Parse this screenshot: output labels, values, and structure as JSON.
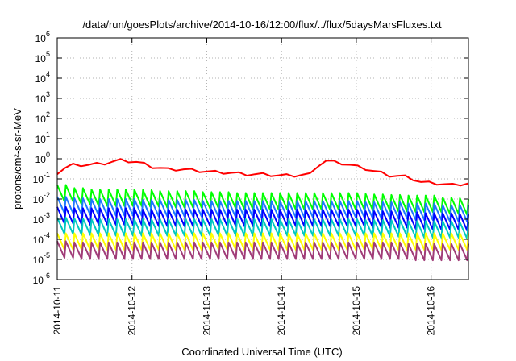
{
  "chart_data": {
    "type": "line",
    "title": "/data/run/goesPlots/archive/2014-10-16/12:00/flux/../flux/5daysMarsFluxes.txt",
    "xlabel": "Coordinated Universal Time (UTC)",
    "ylabel": "protons/cm²-s-sr-MeV",
    "y_scale": "log",
    "ylim": [
      1e-06,
      1000000.0
    ],
    "y_ticks": [
      {
        "value": 1e-06,
        "base": "10",
        "exp": "-6"
      },
      {
        "value": 1e-05,
        "base": "10",
        "exp": "-5"
      },
      {
        "value": 0.0001,
        "base": "10",
        "exp": "-4"
      },
      {
        "value": 0.001,
        "base": "10",
        "exp": "-3"
      },
      {
        "value": 0.01,
        "base": "10",
        "exp": "-2"
      },
      {
        "value": 0.1,
        "base": "10",
        "exp": "-1"
      },
      {
        "value": 1.0,
        "base": "10",
        "exp": "0"
      },
      {
        "value": 10.0,
        "base": "10",
        "exp": "1"
      },
      {
        "value": 100.0,
        "base": "10",
        "exp": "2"
      },
      {
        "value": 1000.0,
        "base": "10",
        "exp": "3"
      },
      {
        "value": 10000.0,
        "base": "10",
        "exp": "4"
      },
      {
        "value": 100000.0,
        "base": "10",
        "exp": "5"
      },
      {
        "value": 1000000.0,
        "base": "10",
        "exp": "6"
      }
    ],
    "xlim": [
      "2014-10-11",
      "2014-10-16 12:00"
    ],
    "x_ticks": [
      "2014-10-11",
      "2014-10-12",
      "2014-10-13",
      "2014-10-14",
      "2014-10-15",
      "2014-10-16"
    ],
    "grid": true,
    "series": [
      {
        "color": "#ff0000",
        "sawtooth": false,
        "values": [
          0.2,
          0.5,
          0.5,
          0.6,
          0.85,
          0.7,
          0.4,
          0.3,
          0.3,
          0.25,
          0.22,
          0.2,
          0.17,
          0.17,
          0.15,
          0.15,
          0.17,
          0.8,
          0.6,
          0.4,
          0.25,
          0.15,
          0.13,
          0.07,
          0.06,
          0.05,
          0.06
        ]
      },
      {
        "color": "#00ff00",
        "sawtooth": true,
        "values": [
          0.05,
          0.035,
          0.03,
          0.03,
          0.03,
          0.028,
          0.025,
          0.025,
          0.025,
          0.022,
          0.022,
          0.02,
          0.02,
          0.02,
          0.02,
          0.02,
          0.02,
          0.02,
          0.02,
          0.018,
          0.017,
          0.016,
          0.015,
          0.015,
          0.012,
          0.011,
          0.01
        ]
      },
      {
        "color": "#1e78ff",
        "sawtooth": true,
        "values": [
          0.013,
          0.011,
          0.01,
          0.01,
          0.01,
          0.009,
          0.009,
          0.009,
          0.009,
          0.008,
          0.008,
          0.008,
          0.008,
          0.008,
          0.008,
          0.008,
          0.008,
          0.008,
          0.008,
          0.007,
          0.007,
          0.007,
          0.006,
          0.006,
          0.005,
          0.005,
          0.005
        ]
      },
      {
        "color": "#0000ff",
        "sawtooth": true,
        "values": [
          0.004,
          0.0035,
          0.0035,
          0.0035,
          0.0035,
          0.003,
          0.003,
          0.003,
          0.003,
          0.003,
          0.003,
          0.003,
          0.003,
          0.003,
          0.003,
          0.003,
          0.003,
          0.003,
          0.003,
          0.0025,
          0.0025,
          0.0025,
          0.0022,
          0.002,
          0.002,
          0.0018,
          0.0017
        ]
      },
      {
        "color": "#00c8c0",
        "sawtooth": true,
        "values": [
          0.0012,
          0.0011,
          0.001,
          0.001,
          0.001,
          0.001,
          0.001,
          0.001,
          0.001,
          0.001,
          0.001,
          0.001,
          0.001,
          0.001,
          0.001,
          0.001,
          0.001,
          0.001,
          0.001,
          0.0009,
          0.0009,
          0.0009,
          0.0008,
          0.0008,
          0.0008,
          0.0007,
          0.0007
        ]
      },
      {
        "color": "#ffff00",
        "sawtooth": true,
        "values": [
          0.0002,
          0.0002,
          0.0002,
          0.0002,
          0.0002,
          0.0002,
          0.0002,
          0.0002,
          0.0002,
          0.0002,
          0.0002,
          0.0002,
          0.0002,
          0.0002,
          0.0002,
          0.0002,
          0.0002,
          0.0002,
          0.0002,
          0.0002,
          0.0002,
          0.0002,
          0.0002,
          0.0002,
          0.0002,
          0.0002,
          0.0002
        ]
      },
      {
        "color": "#a03c78",
        "sawtooth": true,
        "values": [
          8e-05,
          7e-05,
          7e-05,
          7e-05,
          7e-05,
          7e-05,
          7e-05,
          7e-05,
          7e-05,
          7e-05,
          7e-05,
          7e-05,
          7e-05,
          7e-05,
          7e-05,
          7e-05,
          7e-05,
          7e-05,
          7e-05,
          7e-05,
          7e-05,
          7e-05,
          6e-05,
          6e-05,
          6e-05,
          6e-05,
          6e-05
        ]
      }
    ]
  }
}
